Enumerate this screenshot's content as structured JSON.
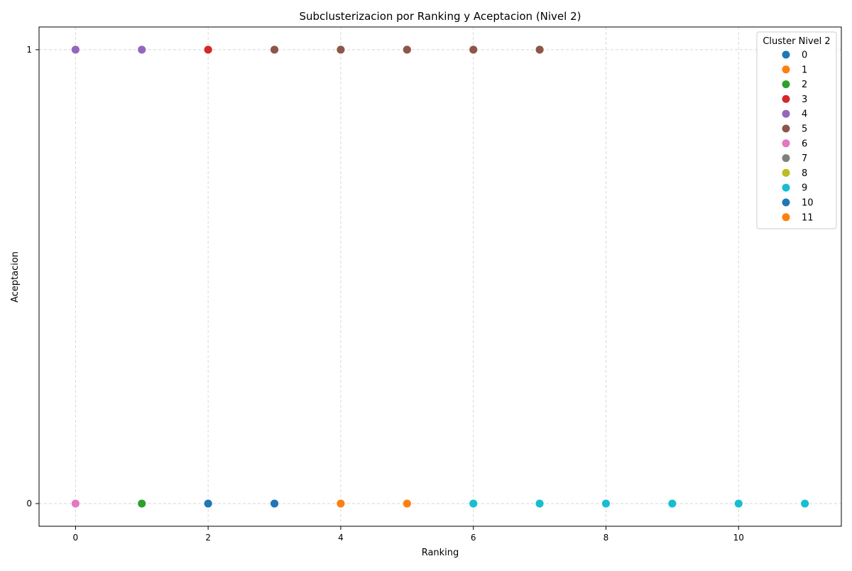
{
  "chart_data": {
    "type": "scatter",
    "title": "Subclusterizacion por Ranking y Aceptacion (Nivel 2)",
    "xlabel": "Ranking",
    "ylabel": "Aceptacion",
    "xlim": [
      -0.55,
      11.55
    ],
    "ylim": [
      -0.05,
      1.05
    ],
    "xticks": [
      0,
      2,
      4,
      6,
      8,
      10
    ],
    "yticks": [
      0,
      1
    ],
    "grid": true,
    "legend": {
      "title": "Cluster Nivel 2",
      "placement": "top-right",
      "entries": [
        {
          "label": "0",
          "color": "#1f77b4"
        },
        {
          "label": "1",
          "color": "#ff7f0e"
        },
        {
          "label": "2",
          "color": "#2ca02c"
        },
        {
          "label": "3",
          "color": "#d62728"
        },
        {
          "label": "4",
          "color": "#9467bd"
        },
        {
          "label": "5",
          "color": "#8c564b"
        },
        {
          "label": "6",
          "color": "#e377c2"
        },
        {
          "label": "7",
          "color": "#7f7f7f"
        },
        {
          "label": "8",
          "color": "#bcbd22"
        },
        {
          "label": "9",
          "color": "#17becf"
        },
        {
          "label": "10",
          "color": "#1f77b4"
        },
        {
          "label": "11",
          "color": "#ff7f0e"
        }
      ]
    },
    "points": [
      {
        "x": 0,
        "y": 1,
        "cluster": "4",
        "color": "#9467bd"
      },
      {
        "x": 1,
        "y": 1,
        "cluster": "4",
        "color": "#9467bd"
      },
      {
        "x": 2,
        "y": 1,
        "cluster": "3",
        "color": "#d62728"
      },
      {
        "x": 3,
        "y": 1,
        "cluster": "5",
        "color": "#8c564b"
      },
      {
        "x": 4,
        "y": 1,
        "cluster": "5",
        "color": "#8c564b"
      },
      {
        "x": 5,
        "y": 1,
        "cluster": "5",
        "color": "#8c564b"
      },
      {
        "x": 6,
        "y": 1,
        "cluster": "5",
        "color": "#8c564b"
      },
      {
        "x": 7,
        "y": 1,
        "cluster": "5",
        "color": "#8c564b"
      },
      {
        "x": 0,
        "y": 0,
        "cluster": "6",
        "color": "#e377c2"
      },
      {
        "x": 1,
        "y": 0,
        "cluster": "2",
        "color": "#2ca02c"
      },
      {
        "x": 2,
        "y": 0,
        "cluster": "0",
        "color": "#1f77b4"
      },
      {
        "x": 3,
        "y": 0,
        "cluster": "0",
        "color": "#1f77b4"
      },
      {
        "x": 4,
        "y": 0,
        "cluster": "1",
        "color": "#ff7f0e"
      },
      {
        "x": 5,
        "y": 0,
        "cluster": "1",
        "color": "#ff7f0e"
      },
      {
        "x": 6,
        "y": 0,
        "cluster": "9",
        "color": "#17becf"
      },
      {
        "x": 7,
        "y": 0,
        "cluster": "9",
        "color": "#17becf"
      },
      {
        "x": 8,
        "y": 0,
        "cluster": "9",
        "color": "#17becf"
      },
      {
        "x": 9,
        "y": 0,
        "cluster": "9",
        "color": "#17becf"
      },
      {
        "x": 10,
        "y": 0,
        "cluster": "9",
        "color": "#17becf"
      },
      {
        "x": 11,
        "y": 0,
        "cluster": "9",
        "color": "#17becf"
      }
    ]
  }
}
